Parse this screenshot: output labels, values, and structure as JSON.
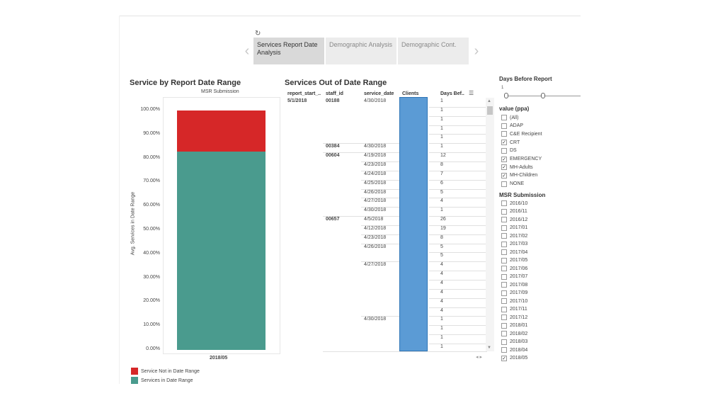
{
  "header": {
    "undo_icon": "↻"
  },
  "tabs": [
    {
      "label": "Services Report Date Analysis",
      "active": true
    },
    {
      "label": "Demographic Analysis",
      "active": false
    },
    {
      "label": "Demographic Cont.",
      "active": false
    }
  ],
  "chart": {
    "title": "Service by Report Date Range",
    "subtitle": "MSR Submission",
    "ylabel": "Avg. Services in Date Range",
    "category": "2018/05",
    "legend": [
      {
        "label": "Service Not in Date Range",
        "color": "#d62728"
      },
      {
        "label": "Services in Date Range",
        "color": "#4a9b8e"
      }
    ]
  },
  "chart_data": {
    "type": "bar",
    "stacked": true,
    "categories": [
      "2018/05"
    ],
    "series": [
      {
        "name": "Services in Date Range",
        "values": [
          0.827
        ],
        "color": "#4a9b8e"
      },
      {
        "name": "Service Not in Date Range",
        "values": [
          0.173
        ],
        "color": "#d62728"
      }
    ],
    "title": "Service by Report Date Range",
    "subtitle": "MSR Submission",
    "ylabel": "Avg. Services in Date Range",
    "ylim": [
      0,
      1
    ],
    "yticks": [
      "0.00%",
      "10.00%",
      "20.00%",
      "30.00%",
      "40.00%",
      "50.00%",
      "60.00%",
      "70.00%",
      "80.00%",
      "90.00%",
      "100.00%"
    ]
  },
  "table": {
    "title": "Services Out of Date Range",
    "headers": [
      "report_start_..",
      "staff_id",
      "service_date",
      "Clients",
      "Days Bef.."
    ],
    "report_start": "5/1/2018",
    "staff": [
      "00188",
      "00384",
      "00604",
      "00657"
    ],
    "dates": [
      "4/30/2018",
      "4/30/2018",
      "4/19/2018",
      "4/23/2018",
      "4/24/2018",
      "4/25/2018",
      "4/26/2018",
      "4/27/2018",
      "4/30/2018",
      "4/5/2018",
      "4/12/2018",
      "4/23/2018",
      "4/26/2018",
      "4/27/2018",
      "4/30/2018"
    ],
    "days": [
      "1",
      "1",
      "1",
      "1",
      "1",
      "1",
      "12",
      "8",
      "7",
      "6",
      "5",
      "4",
      "1",
      "26",
      "19",
      "8",
      "5",
      "5",
      "4",
      "4",
      "4",
      "4",
      "4",
      "4",
      "1",
      "1",
      "1",
      "1"
    ]
  },
  "filters": {
    "days_before": {
      "title": "Days Before Report",
      "value": "1"
    },
    "value_ppa": {
      "title": "value (ppa)",
      "options": [
        {
          "label": "(All)",
          "checked": false
        },
        {
          "label": "ADAP",
          "checked": false
        },
        {
          "label": "C&E Recipient",
          "checked": false
        },
        {
          "label": "CRT",
          "checked": true
        },
        {
          "label": "DS",
          "checked": false
        },
        {
          "label": "EMERGENCY",
          "checked": true
        },
        {
          "label": "MH-Adults",
          "checked": true
        },
        {
          "label": "MH-Children",
          "checked": true
        },
        {
          "label": "NONE",
          "checked": false
        }
      ]
    },
    "msr": {
      "title": "MSR Submission",
      "options": [
        {
          "label": "2016/10",
          "checked": false
        },
        {
          "label": "2016/11",
          "checked": false
        },
        {
          "label": "2016/12",
          "checked": false
        },
        {
          "label": "2017/01",
          "checked": false
        },
        {
          "label": "2017/02",
          "checked": false
        },
        {
          "label": "2017/03",
          "checked": false
        },
        {
          "label": "2017/04",
          "checked": false
        },
        {
          "label": "2017/05",
          "checked": false
        },
        {
          "label": "2017/06",
          "checked": false
        },
        {
          "label": "2017/07",
          "checked": false
        },
        {
          "label": "2017/08",
          "checked": false
        },
        {
          "label": "2017/09",
          "checked": false
        },
        {
          "label": "2017/10",
          "checked": false
        },
        {
          "label": "2017/11",
          "checked": false
        },
        {
          "label": "2017/12",
          "checked": false
        },
        {
          "label": "2018/01",
          "checked": false
        },
        {
          "label": "2018/02",
          "checked": false
        },
        {
          "label": "2018/03",
          "checked": false
        },
        {
          "label": "2018/04",
          "checked": false
        },
        {
          "label": "2018/05",
          "checked": true
        }
      ]
    }
  }
}
